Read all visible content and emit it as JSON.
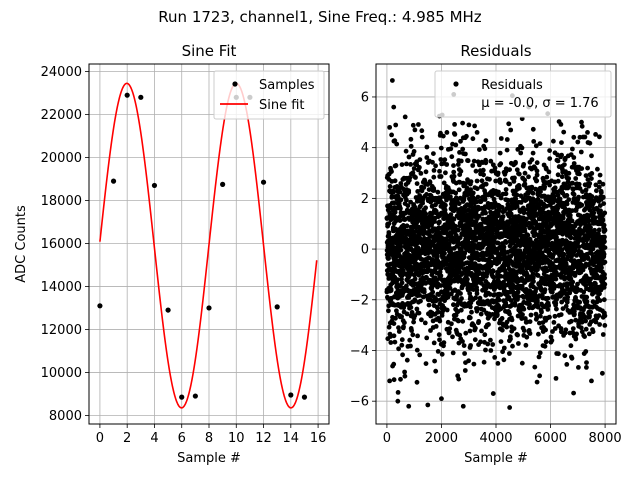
{
  "suptitle": "Run 1723, channel1, Sine Freq.: 4.985 MHz",
  "chart_data": [
    {
      "type": "line",
      "title": "Sine Fit",
      "xlabel": "Sample #",
      "ylabel": "ADC Counts",
      "xlim": [
        -0.8,
        16.8
      ],
      "ylim": [
        7600,
        24350
      ],
      "xticks": [
        "0",
        "2",
        "4",
        "6",
        "8",
        "10",
        "12",
        "14",
        "16"
      ],
      "yticks": [
        "8000",
        "10000",
        "12000",
        "14000",
        "16000",
        "18000",
        "20000",
        "22000",
        "24000"
      ],
      "grid": true,
      "legend_position": "top-right",
      "series": [
        {
          "name": "Samples",
          "kind": "scatter",
          "color": "#000000",
          "x": [
            0,
            1,
            2,
            3,
            4,
            5,
            6,
            7,
            8,
            9,
            10,
            11,
            12,
            13,
            14,
            15
          ],
          "y": [
            13100,
            18900,
            22900,
            22800,
            18700,
            12900,
            8850,
            8900,
            13000,
            18750,
            22800,
            22800,
            18850,
            13050,
            8950,
            8850
          ]
        },
        {
          "name": "Sine fit",
          "kind": "line",
          "color": "#ff0000",
          "function": "y = 15900 + 7550*sin(2*pi*x/8.023 + 0.024)",
          "x_range": [
            0,
            15.9
          ]
        }
      ]
    },
    {
      "type": "scatter",
      "title": "Residuals",
      "xlabel": "Sample #",
      "ylabel": "",
      "xlim": [
        -400,
        8400
      ],
      "ylim": [
        -6.9,
        7.3
      ],
      "xticks": [
        "0",
        "2000",
        "4000",
        "6000",
        "8000"
      ],
      "yticks": [
        "−6",
        "−4",
        "−2",
        "0",
        "2",
        "4",
        "6"
      ],
      "grid": true,
      "legend_position": "top-right",
      "legend_lines": [
        "Residuals",
        "μ = -0.0, σ = 1.76"
      ],
      "series": [
        {
          "name": "Residuals",
          "color": "#000000",
          "n_points": 8000,
          "x_range": [
            0,
            8000
          ],
          "mean": 0.0,
          "std": 1.76,
          "extremes": [
            [
              200,
              6.65
            ],
            [
              2450,
              6.1
            ],
            [
              4600,
              6.05
            ],
            [
              250,
              5.6
            ],
            [
              5200,
              5.6
            ],
            [
              100,
              4.8
            ],
            [
              2200,
              4.6
            ],
            [
              6400,
              4.2
            ],
            [
              400,
              -6.0
            ],
            [
              800,
              -6.2
            ],
            [
              1500,
              -6.15
            ],
            [
              2800,
              -6.2
            ],
            [
              4500,
              -6.25
            ],
            [
              100,
              -5.2
            ],
            [
              2000,
              -5.9
            ],
            [
              6200,
              -5.1
            ],
            [
              7500,
              -5.2
            ],
            [
              3900,
              -5.7
            ],
            [
              5600,
              -5.0
            ],
            [
              7900,
              -4.9
            ]
          ]
        }
      ]
    }
  ]
}
